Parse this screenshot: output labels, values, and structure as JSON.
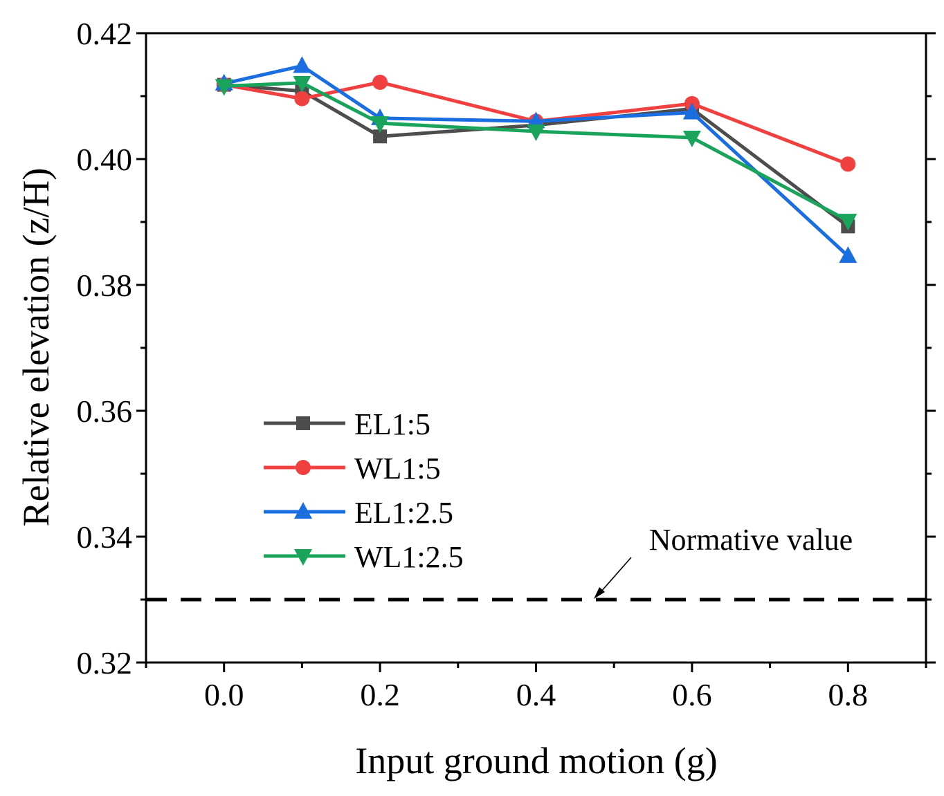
{
  "chart_data": {
    "type": "line",
    "title": "",
    "xlabel": "Input ground motion (g)",
    "ylabel": "Relative elevation (z/H)",
    "xlim": [
      -0.1,
      0.9
    ],
    "ylim": [
      0.32,
      0.42
    ],
    "x_ticks": [
      "0.0",
      "0.2",
      "0.4",
      "0.6",
      "0.8"
    ],
    "y_ticks": [
      "0.32",
      "0.34",
      "0.36",
      "0.38",
      "0.40",
      "0.42"
    ],
    "grid": false,
    "legend_position": "center-left",
    "x": [
      0.0,
      0.1,
      0.2,
      0.4,
      0.6,
      0.8
    ],
    "series": [
      {
        "name": "EL1:5",
        "color": "#4d4d4d",
        "marker": "square",
        "values": [
          0.4118,
          0.4108,
          0.4036,
          0.4054,
          0.408,
          0.3893
        ]
      },
      {
        "name": "WL1:5",
        "color": "#f04040",
        "marker": "circle",
        "values": [
          0.4118,
          0.4096,
          0.4122,
          0.406,
          0.4088,
          0.3992
        ]
      },
      {
        "name": "EL1:2.5",
        "color": "#1a6ee0",
        "marker": "triangle-up",
        "values": [
          0.412,
          0.4148,
          0.4065,
          0.406,
          0.4074,
          0.3846
        ]
      },
      {
        "name": "WL1:2.5",
        "color": "#1aa35a",
        "marker": "triangle-down",
        "values": [
          0.4116,
          0.4121,
          0.4057,
          0.4044,
          0.4034,
          0.3902
        ]
      }
    ],
    "reference_line": {
      "label": "Normative value",
      "value": 0.33,
      "color": "#000000"
    }
  }
}
